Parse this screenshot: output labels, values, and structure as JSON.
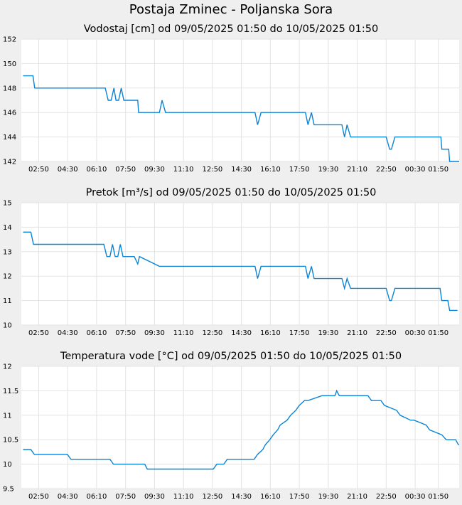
{
  "title": "Postaja Zminec - Poljanska Sora",
  "colors": {
    "line": "#0a84d6",
    "plot_bg": "#ffffff",
    "page_bg": "#efefef",
    "grid": "#e3e3e3"
  },
  "chart_data": [
    {
      "type": "line",
      "title": "Vodostaj [cm] od 09/05/2025 01:50 do 10/05/2025 01:50",
      "xlabel": "",
      "ylabel": "",
      "x_ticks": [
        "02:50",
        "04:30",
        "06:10",
        "07:50",
        "09:30",
        "11:10",
        "12:50",
        "14:30",
        "16:10",
        "17:50",
        "19:30",
        "21:10",
        "22:50",
        "00:30",
        "01:50"
      ],
      "xlim": [
        "01:50",
        "01:50 (+1 day)"
      ],
      "ylim": [
        142,
        152
      ],
      "y_ticks": [
        "142",
        "144",
        "146",
        "148",
        "150",
        "152"
      ],
      "grid": true,
      "series": [
        {
          "x_hours": [
            0.1,
            0.67,
            0.77,
            4.83,
            5.0,
            5.17,
            5.33,
            5.45,
            5.6,
            5.75,
            5.9,
            6.05,
            6.1,
            6.3,
            6.4,
            6.5,
            6.7,
            6.75,
            7.95,
            8.1,
            8.3,
            8.5,
            8.6,
            13.45,
            13.6,
            13.8,
            14.6,
            16.35,
            16.5,
            16.7,
            16.85,
            17.05,
            18.45,
            18.6,
            18.75,
            18.95,
            21.0,
            21.2,
            21.3,
            21.5,
            24.15,
            24.2,
            24.6,
            24.65,
            25.2
          ],
          "y": [
            149,
            149,
            148,
            148,
            147,
            147,
            148,
            147,
            147,
            148,
            147,
            147,
            147,
            147,
            147,
            147,
            147,
            146,
            146,
            147,
            146,
            146,
            146,
            146,
            145,
            146,
            146,
            146,
            145,
            146,
            145,
            145,
            145,
            144,
            145,
            144,
            144,
            143,
            143,
            144,
            144,
            143,
            143,
            142,
            142
          ]
        }
      ]
    },
    {
      "type": "line",
      "title": "Pretok [m³/s] od 09/05/2025 01:50 do 10/05/2025 01:50",
      "xlabel": "",
      "ylabel": "",
      "x_ticks": [
        "02:50",
        "04:30",
        "06:10",
        "07:50",
        "09:30",
        "11:10",
        "12:50",
        "14:30",
        "16:10",
        "17:50",
        "19:30",
        "21:10",
        "22:50",
        "00:30",
        "01:50"
      ],
      "xlim": [
        "01:50",
        "01:50 (+1 day)"
      ],
      "ylim": [
        10,
        15
      ],
      "y_ticks": [
        "10",
        "11",
        "12",
        "13",
        "14",
        "15"
      ],
      "grid": true,
      "series": [
        {
          "x_hours": [
            0.1,
            0.55,
            0.7,
            4.75,
            4.92,
            5.1,
            5.25,
            5.4,
            5.55,
            5.7,
            5.85,
            6.0,
            6.1,
            6.3,
            6.4,
            6.5,
            6.7,
            6.8,
            7.95,
            8.1,
            8.3,
            8.5,
            8.6,
            13.45,
            13.6,
            13.8,
            14.6,
            16.35,
            16.5,
            16.7,
            16.85,
            17.05,
            18.45,
            18.6,
            18.75,
            18.95,
            21.0,
            21.2,
            21.3,
            21.5,
            24.1,
            24.2,
            24.55,
            24.65,
            25.1
          ],
          "y": [
            13.8,
            13.8,
            13.3,
            13.3,
            12.8,
            12.8,
            13.3,
            12.8,
            12.8,
            13.3,
            12.8,
            12.8,
            12.8,
            12.8,
            12.8,
            12.8,
            12.5,
            12.8,
            12.4,
            12.4,
            12.4,
            12.4,
            12.4,
            12.4,
            11.9,
            12.4,
            12.4,
            12.4,
            11.9,
            12.4,
            11.9,
            11.9,
            11.9,
            11.5,
            11.9,
            11.5,
            11.5,
            11.0,
            11.0,
            11.5,
            11.5,
            11.0,
            11.0,
            10.6,
            10.6
          ]
        }
      ]
    },
    {
      "type": "line",
      "title": "Temperatura vode [°C] od 09/05/2025 01:50 do 10/05/2025 01:50",
      "xlabel": "",
      "ylabel": "",
      "x_ticks": [
        "02:50",
        "04:30",
        "06:10",
        "07:50",
        "09:30",
        "11:10",
        "12:50",
        "14:30",
        "16:10",
        "17:50",
        "19:30",
        "21:10",
        "22:50",
        "00:30",
        "01:50"
      ],
      "xlim": [
        "01:50",
        "01:50 (+1 day)"
      ],
      "ylim": [
        9.5,
        12
      ],
      "y_ticks": [
        "9.5",
        "10",
        "10.5",
        "11",
        "11.5",
        "12"
      ],
      "grid": true,
      "series": [
        {
          "x_hours": [
            0.1,
            0.55,
            0.75,
            2.65,
            2.85,
            5.1,
            5.3,
            7.1,
            7.25,
            11.05,
            11.25,
            11.65,
            11.85,
            13.4,
            13.6,
            13.9,
            14.05,
            14.3,
            14.5,
            14.75,
            14.9,
            15.3,
            15.5,
            15.8,
            16.0,
            16.3,
            16.5,
            17.3,
            17.5,
            18.05,
            18.15,
            18.3,
            19.95,
            20.15,
            20.7,
            20.9,
            21.6,
            21.8,
            22.4,
            22.6,
            23.3,
            23.5,
            24.2,
            24.45,
            25.0,
            25.15,
            25.2
          ],
          "y": [
            10.3,
            10.3,
            10.2,
            10.2,
            10.1,
            10.1,
            10.0,
            10.0,
            9.9,
            9.9,
            10.0,
            10.0,
            10.1,
            10.1,
            10.2,
            10.3,
            10.4,
            10.5,
            10.6,
            10.7,
            10.8,
            10.9,
            11.0,
            11.1,
            11.2,
            11.3,
            11.3,
            11.4,
            11.4,
            11.4,
            11.5,
            11.4,
            11.4,
            11.3,
            11.3,
            11.2,
            11.1,
            11.0,
            10.9,
            10.9,
            10.8,
            10.7,
            10.6,
            10.5,
            10.5,
            10.4,
            10.4
          ]
        }
      ]
    }
  ]
}
